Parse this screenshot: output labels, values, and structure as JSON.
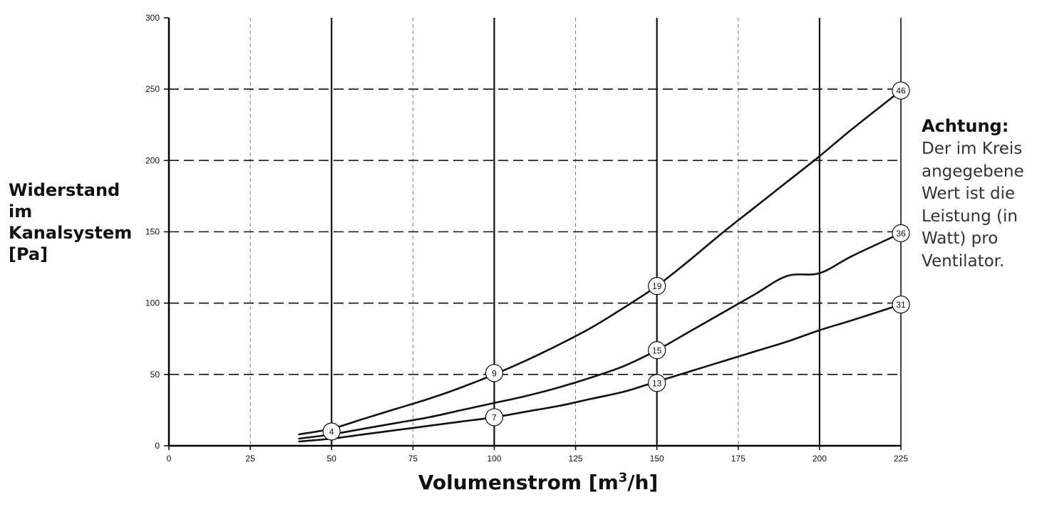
{
  "chart_data": {
    "type": "line",
    "title": "",
    "ylabel": [
      "Widerstand",
      "im",
      "Kanalsystem",
      "[Pa]"
    ],
    "xlabel_main": "Volumenstrom [m",
    "xlabel_sup": "3",
    "xlabel_tail": "/h]",
    "xlim": [
      0,
      225
    ],
    "ylim": [
      0,
      300
    ],
    "xticks": [
      0,
      25,
      50,
      75,
      100,
      125,
      150,
      175,
      200,
      225
    ],
    "yticks": [
      0,
      50,
      100,
      150,
      200,
      250,
      300
    ],
    "grid": true,
    "series": [
      {
        "x": [
          40,
          50,
          60,
          70,
          80,
          90,
          100,
          110,
          120,
          130,
          140,
          150,
          160,
          170,
          180,
          190,
          200,
          210,
          225
        ],
        "values": [
          8,
          12,
          19,
          26,
          33,
          41,
          50,
          60,
          71,
          83,
          97,
          112,
          130,
          149,
          167,
          185,
          203,
          222,
          249
        ]
      },
      {
        "x": [
          40,
          50,
          60,
          70,
          80,
          90,
          100,
          110,
          120,
          130,
          140,
          150,
          160,
          170,
          180,
          190,
          200,
          210,
          225
        ],
        "values": [
          5,
          8,
          12,
          16,
          20,
          25,
          30,
          35,
          41,
          48,
          56,
          67,
          80,
          93,
          106,
          119,
          121,
          133,
          149
        ]
      },
      {
        "x": [
          40,
          50,
          60,
          70,
          80,
          90,
          100,
          110,
          120,
          130,
          140,
          150,
          160,
          170,
          180,
          190,
          200,
          210,
          225
        ],
        "values": [
          3,
          5,
          8,
          11,
          14,
          17,
          20,
          24,
          28,
          33,
          38,
          45,
          52,
          59,
          66,
          73,
          81,
          88,
          99
        ]
      }
    ],
    "power_markers": [
      {
        "x": 50,
        "y": 10,
        "label": "4"
      },
      {
        "x": 100,
        "y": 51,
        "label": "9"
      },
      {
        "x": 150,
        "y": 112,
        "label": "19"
      },
      {
        "x": 225,
        "y": 249,
        "label": "46"
      },
      {
        "x": 150,
        "y": 67,
        "label": "15"
      },
      {
        "x": 225,
        "y": 149,
        "label": "36"
      },
      {
        "x": 100,
        "y": 20,
        "label": "7"
      },
      {
        "x": 150,
        "y": 44,
        "label": "13"
      },
      {
        "x": 225,
        "y": 99,
        "label": "31"
      }
    ]
  },
  "note": {
    "title": "Achtung:",
    "lines": [
      "Der im Kreis",
      "angegebene",
      "Wert ist die",
      "Leistung (in",
      "Watt) pro",
      "Ventilator."
    ]
  },
  "colors": {
    "axis": "#000000",
    "curve": "#111111",
    "grid_major": "#111111",
    "grid_minor": "#777777"
  }
}
